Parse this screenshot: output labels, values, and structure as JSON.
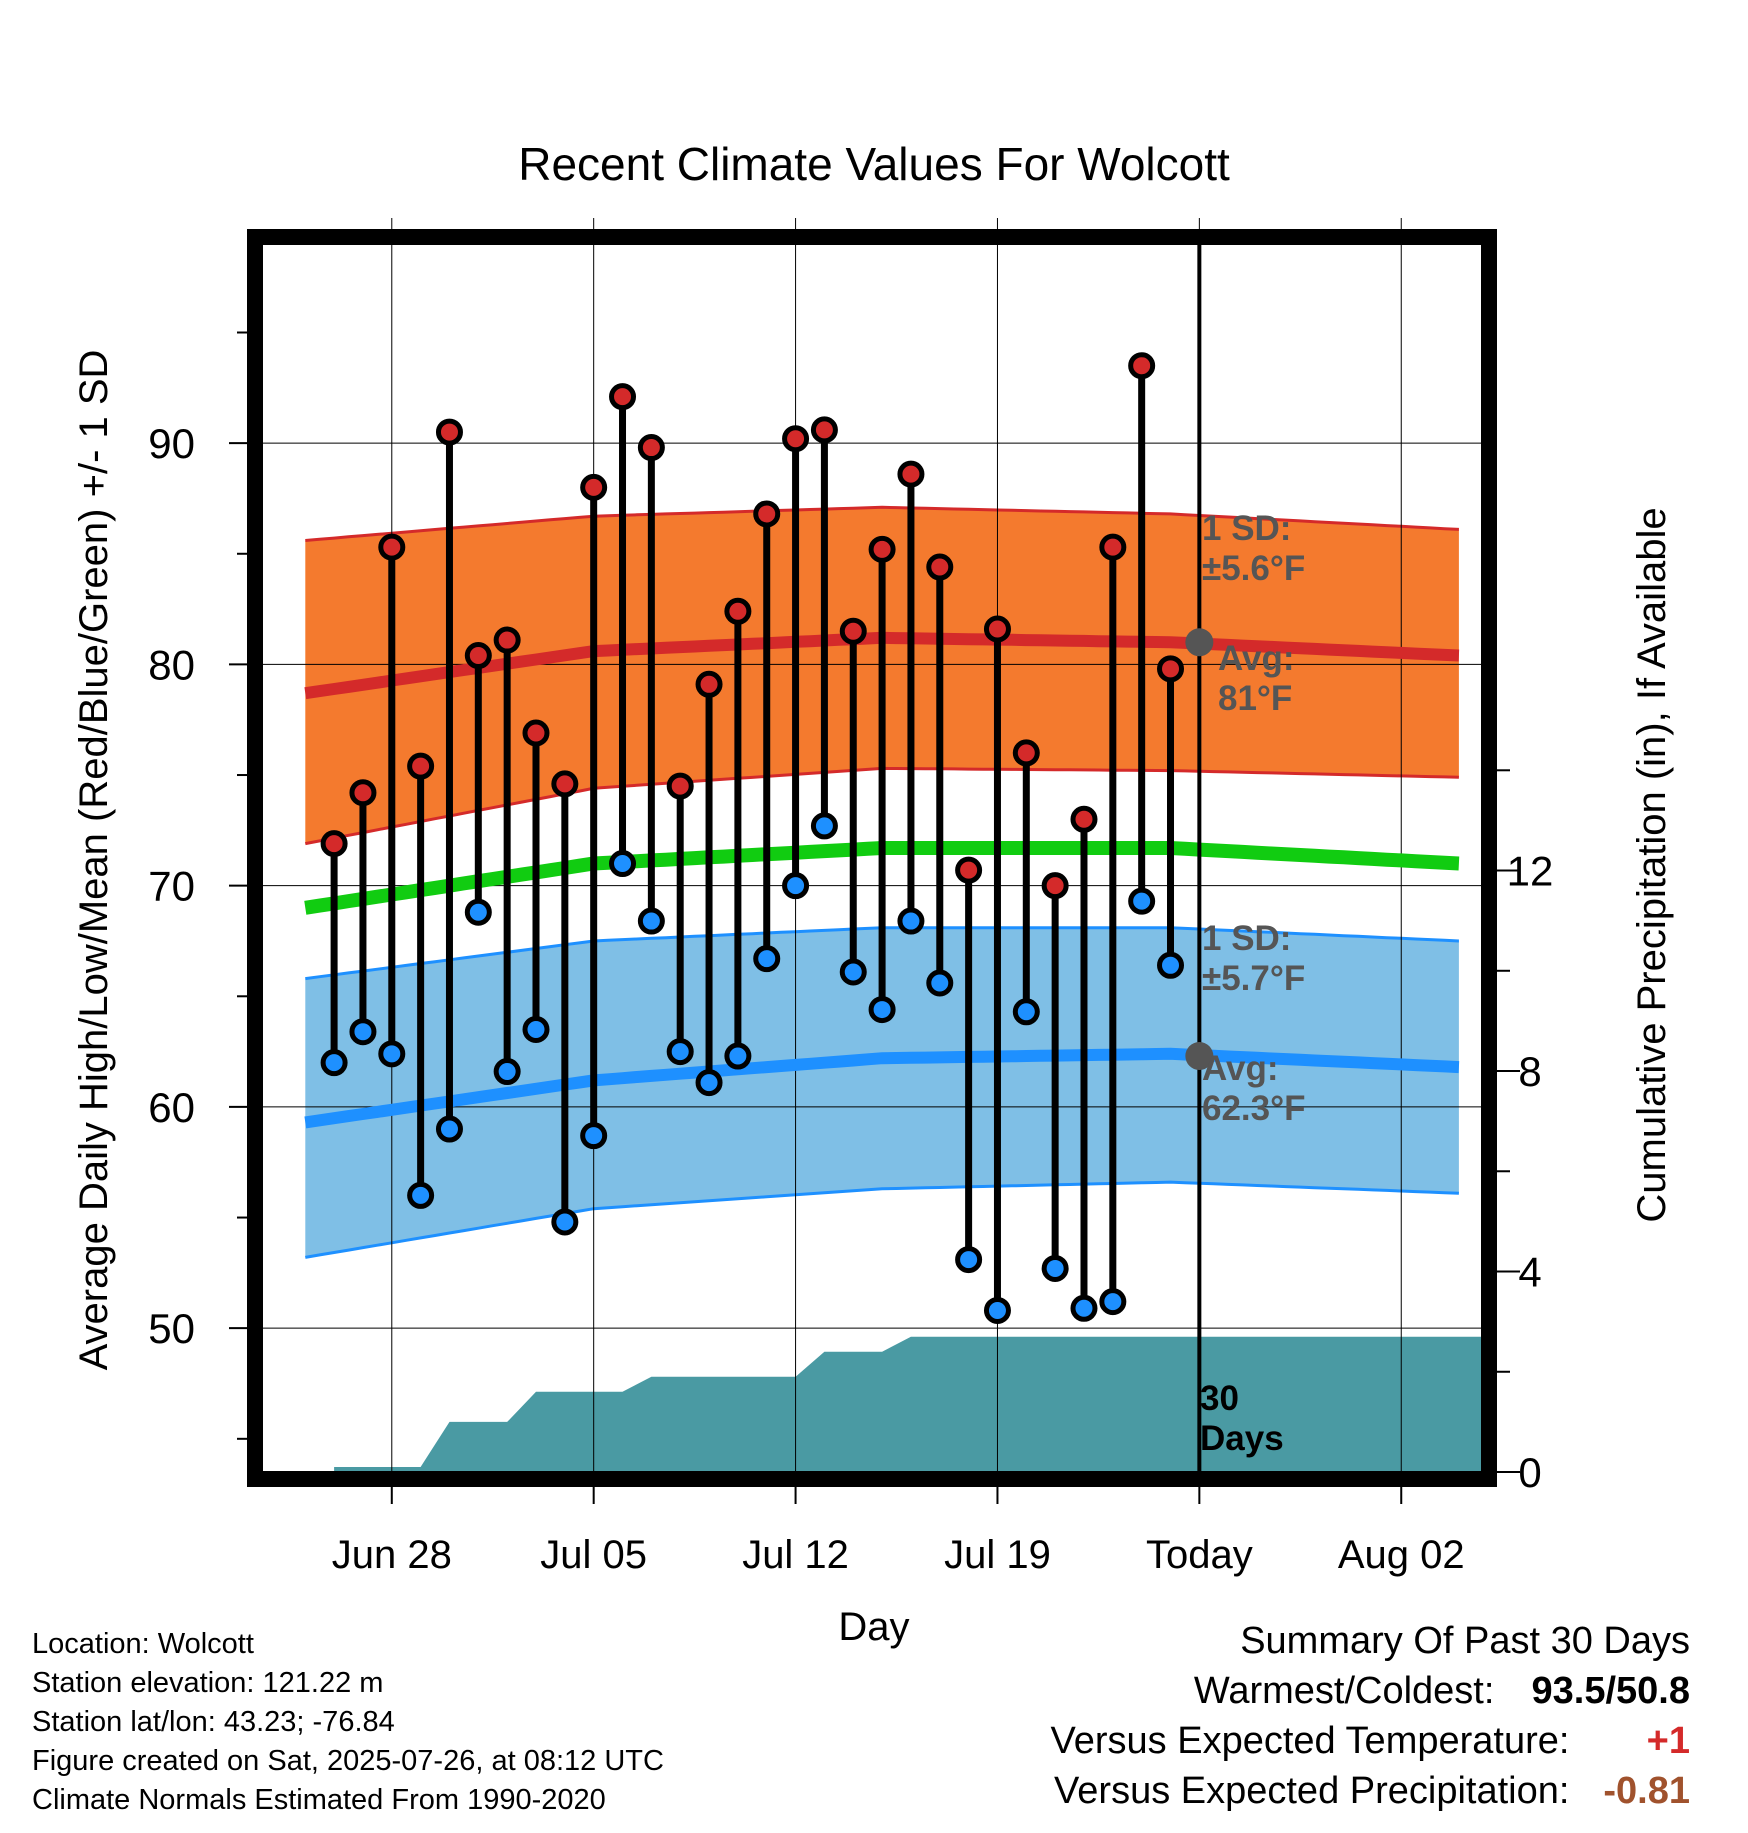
{
  "chart_data": {
    "type": "line",
    "title": "Recent Climate Values For Wolcott",
    "xlabel": "Day",
    "ylabel": "Average Daily High/Low/Mean (Red/Blue/Green) +/- 1 SD",
    "y2label": "Cumulative Precipitation (in), If Available",
    "ylim": [
      43.5,
      99
    ],
    "y_ticks": [
      50,
      60,
      70,
      80,
      90
    ],
    "y2lim": [
      0,
      24.5
    ],
    "y2_ticks": [
      0,
      4,
      8,
      12
    ],
    "x_tick_labels": [
      "Jun 28",
      "Jul 05",
      "Jul 12",
      "Jul 19",
      "Today",
      "Aug 02"
    ],
    "x_tick_days": [
      28,
      35,
      42,
      49,
      56,
      63
    ],
    "dates": [
      "Jun 26",
      "Jun 27",
      "Jun 28",
      "Jun 29",
      "Jun 30",
      "Jul 01",
      "Jul 02",
      "Jul 03",
      "Jul 04",
      "Jul 05",
      "Jul 06",
      "Jul 07",
      "Jul 08",
      "Jul 09",
      "Jul 10",
      "Jul 11",
      "Jul 12",
      "Jul 13",
      "Jul 14",
      "Jul 15",
      "Jul 16",
      "Jul 17",
      "Jul 18",
      "Jul 19",
      "Jul 20",
      "Jul 21",
      "Jul 22",
      "Jul 23",
      "Jul 24",
      "Jul 25"
    ],
    "series": [
      {
        "name": "High",
        "color": "#d42a2a",
        "values": [
          71.9,
          74.2,
          85.3,
          75.4,
          90.5,
          80.4,
          81.1,
          76.9,
          74.6,
          88.0,
          92.1,
          89.8,
          74.5,
          79.1,
          82.4,
          86.8,
          90.2,
          90.6,
          81.5,
          85.2,
          88.6,
          84.4,
          70.7,
          81.6,
          76.0,
          70.0,
          73.0,
          85.3,
          93.5,
          79.8
        ]
      },
      {
        "name": "Low",
        "color": "#1e90ff",
        "values": [
          62.0,
          63.4,
          62.4,
          56.0,
          59.0,
          68.8,
          61.6,
          63.5,
          54.8,
          58.7,
          71.0,
          68.4,
          62.5,
          61.1,
          62.3,
          66.7,
          70.0,
          72.7,
          66.1,
          64.4,
          68.4,
          65.6,
          53.1,
          50.8,
          64.3,
          52.7,
          50.9,
          51.2,
          69.3,
          66.4
        ]
      }
    ],
    "normals": {
      "days": [
        25,
        35,
        45,
        55,
        65
      ],
      "high_mean": [
        78.7,
        80.6,
        81.2,
        81.0,
        80.4
      ],
      "high_upper": [
        85.6,
        86.7,
        87.1,
        86.8,
        86.1
      ],
      "high_lower": [
        71.9,
        74.4,
        75.3,
        75.2,
        74.9
      ],
      "avg_mean": [
        69.0,
        71.0,
        71.7,
        71.7,
        71.0
      ],
      "low_mean": [
        59.3,
        61.2,
        62.2,
        62.4,
        61.8
      ],
      "low_upper": [
        65.8,
        67.5,
        68.1,
        68.1,
        67.5
      ],
      "low_lower": [
        53.2,
        55.4,
        56.3,
        56.6,
        56.1
      ]
    },
    "precip_cumulative": [
      0.1,
      0.1,
      0.1,
      0.1,
      1.0,
      1.0,
      1.0,
      1.6,
      1.6,
      1.6,
      1.6,
      1.9,
      1.9,
      1.9,
      1.9,
      1.9,
      1.9,
      2.4,
      2.4,
      2.4,
      2.7,
      2.7,
      2.7,
      2.7,
      2.7,
      2.7,
      2.7,
      2.7,
      2.7,
      2.7
    ],
    "colors": {
      "high_band": "#f47a2e",
      "high_line": "#d42a2a",
      "low_band": "#7fbfe6",
      "low_line": "#1e90ff",
      "mean_line": "#11cc11",
      "precip": "#4a9aa3",
      "annotation": "#555555"
    },
    "annotations": {
      "high_sd": [
        "1 SD:",
        "±5.6°F"
      ],
      "high_avg": [
        "Avg:",
        "81°F"
      ],
      "low_sd": [
        "1 SD:",
        "±5.7°F"
      ],
      "low_avg": [
        "Avg:",
        "62.3°F"
      ],
      "days_label": [
        "30",
        "Days"
      ]
    }
  },
  "info": {
    "location": "Location: Wolcott",
    "elevation": "Station elevation: 121.22 m",
    "latlon": "Station lat/lon: 43.23; -76.84",
    "created": "Figure created on Sat, 2025-07-26, at 08:12 UTC",
    "normals": "Climate Normals Estimated From 1990-2020"
  },
  "summary": {
    "heading": "Summary Of Past 30 Days",
    "warm_cold_label": "Warmest/Coldest:",
    "warm_cold_value": "93.5/50.8",
    "temp_label": "Versus Expected Temperature:",
    "temp_value": "+1",
    "temp_color": "#d42a2a",
    "precip_label": "Versus Expected Precipitation:",
    "precip_value": "-0.81",
    "precip_color": "#a0522d"
  }
}
